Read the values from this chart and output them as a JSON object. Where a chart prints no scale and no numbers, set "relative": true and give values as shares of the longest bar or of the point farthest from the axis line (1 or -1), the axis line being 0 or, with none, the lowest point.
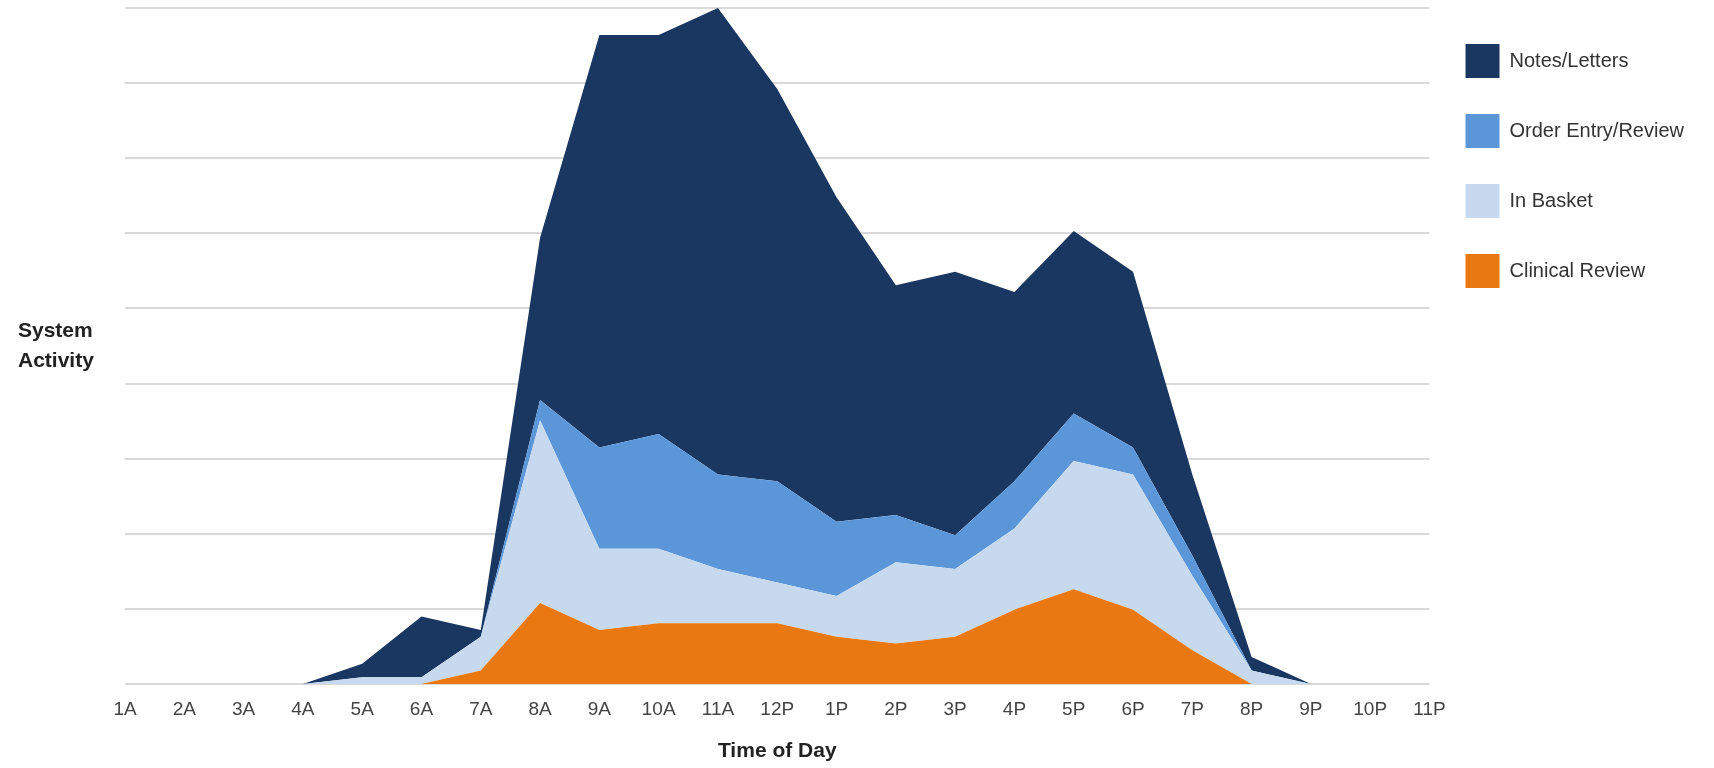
{
  "chart_data": {
    "type": "area",
    "xlabel": "Time of Day",
    "ylabel": "System Activity",
    "relative": true,
    "stacked": true,
    "grid": "y",
    "legend": "right",
    "categories": [
      "1A",
      "2A",
      "3A",
      "4A",
      "5A",
      "6A",
      "7A",
      "8A",
      "9A",
      "10A",
      "11A",
      "12P",
      "1P",
      "2P",
      "3P",
      "4P",
      "5P",
      "6P",
      "7P",
      "8P",
      "9P",
      "10P",
      "11P"
    ],
    "series": [
      {
        "name": "Clinical Review",
        "color": "#e8780f",
        "values": [
          0,
          0,
          0,
          0,
          0,
          0,
          0.02,
          0.12,
          0.08,
          0.09,
          0.09,
          0.09,
          0.07,
          0.06,
          0.07,
          0.11,
          0.14,
          0.11,
          0.05,
          0,
          0,
          0,
          0
        ]
      },
      {
        "name": "In Basket",
        "color": "#c6d9ef",
        "values": [
          0,
          0,
          0,
          0,
          0.01,
          0.01,
          0.05,
          0.27,
          0.12,
          0.11,
          0.08,
          0.06,
          0.06,
          0.12,
          0.1,
          0.12,
          0.19,
          0.2,
          0.11,
          0.02,
          0,
          0,
          0
        ]
      },
      {
        "name": "Order Entry/Review",
        "color": "#5b96d8",
        "values": [
          0,
          0,
          0,
          0,
          0,
          0,
          0,
          0.03,
          0.15,
          0.17,
          0.14,
          0.15,
          0.11,
          0.07,
          0.05,
          0.07,
          0.07,
          0.04,
          0.03,
          0,
          0,
          0,
          0
        ]
      },
      {
        "name": "Notes/Letters",
        "color": "#1a3761",
        "values": [
          0,
          0,
          0,
          0,
          0.02,
          0.09,
          0.01,
          0.24,
          0.61,
          0.59,
          0.69,
          0.58,
          0.48,
          0.34,
          0.39,
          0.28,
          0.27,
          0.26,
          0.12,
          0.02,
          0,
          0,
          0
        ]
      }
    ]
  }
}
